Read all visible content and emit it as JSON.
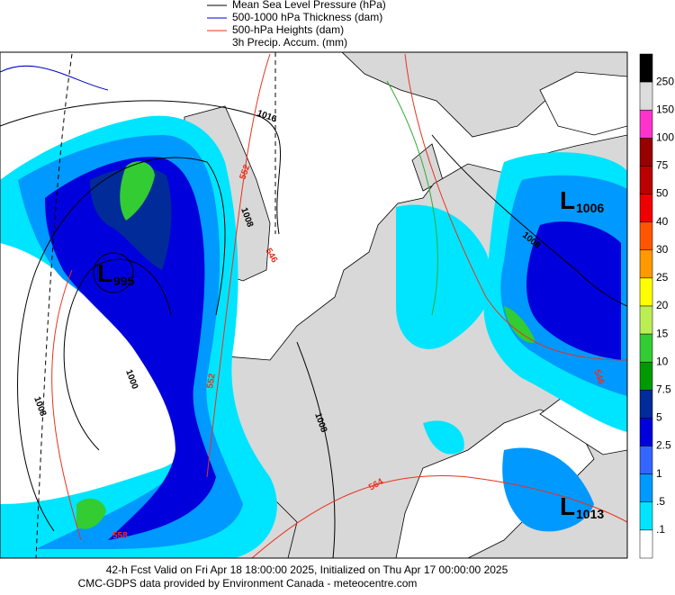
{
  "legend": [
    {
      "label": "Mean Sea Level Pressure (hPa)",
      "color": "#000000"
    },
    {
      "label": "500-1000 hPa Thickness (dam)",
      "color": "#0000cc"
    },
    {
      "label": "500-hPa Heights (dam)",
      "color": "#e8321e"
    },
    {
      "label": "3h Precip. Accum. (mm)",
      "color": null
    }
  ],
  "colorbar": {
    "labels": [
      "250",
      "150",
      "100",
      "75",
      "50",
      "40",
      "30",
      "25",
      "20",
      "15",
      "10",
      "7.5",
      "5",
      "2.5",
      "1",
      ".5",
      ".1"
    ],
    "colors": [
      "#000000",
      "#dcdcdc",
      "#ff33cc",
      "#990000",
      "#bb0000",
      "#ee0000",
      "#ff5500",
      "#ff9900",
      "#ffff00",
      "#bbee55",
      "#33cc33",
      "#009900",
      "#002b99",
      "#0000dd",
      "#3366ff",
      "#0099ff",
      "#00e5ff",
      "#ffffff"
    ]
  },
  "lows": [
    {
      "letter": "L",
      "value": "995"
    },
    {
      "letter": "L",
      "value": "1006"
    },
    {
      "letter": "L",
      "value": "1013"
    }
  ],
  "pressure_labels": [
    "1016",
    "1008",
    "1008",
    "1000",
    "1008",
    "1008"
  ],
  "height_labels": [
    "552",
    "546",
    "552",
    "564",
    "558",
    "546"
  ],
  "footer": {
    "line1": "42-h Fcst Valid on Fri Apr 18 18:00:00 2025, Initialized on Thu Apr 17 00:00:00 2025",
    "line2": "CMC-GDPS data provided by Environment Canada - meteocentre.com"
  }
}
